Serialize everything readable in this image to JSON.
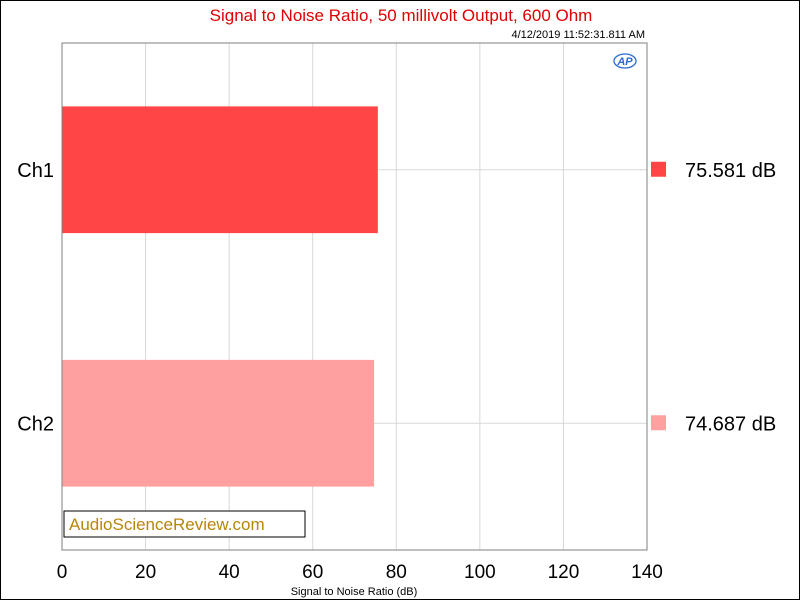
{
  "chart_data": {
    "type": "bar",
    "orientation": "horizontal",
    "title": "Signal to Noise Ratio, 50 millivolt Output, 600 Ohm",
    "timestamp": "4/12/2019 11:52:31.811 AM",
    "xlabel": "Signal to Noise Ratio (dB)",
    "xlim": [
      0,
      140
    ],
    "xticks": [
      "0",
      "20",
      "40",
      "60",
      "80",
      "100",
      "120",
      "140"
    ],
    "grid": true,
    "categories": [
      "Ch1",
      "Ch2"
    ],
    "values": [
      75.581,
      74.687
    ],
    "readouts": [
      "75.581  dB",
      "74.687  dB"
    ],
    "colors": [
      "#ff4545",
      "#ffa0a0"
    ],
    "watermark": "AudioScienceReview.com",
    "logo": "AP",
    "title_color": "#e00000"
  }
}
